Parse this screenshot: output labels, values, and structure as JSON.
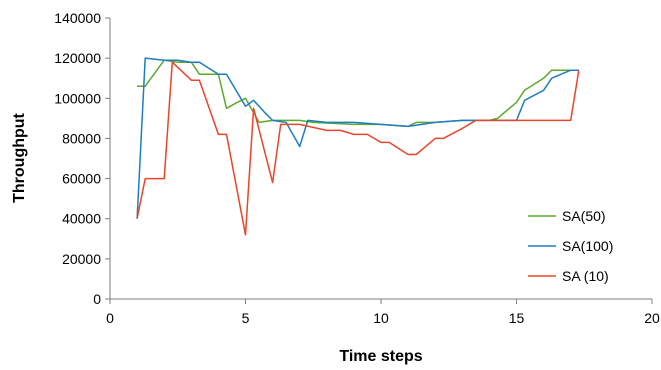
{
  "chart_data": {
    "type": "line",
    "xlabel": "Time steps",
    "ylabel": "Throughput",
    "xlim": [
      0,
      20
    ],
    "ylim": [
      0,
      140000
    ],
    "x_ticks": [
      0,
      5,
      10,
      15,
      20
    ],
    "y_ticks": [
      0,
      20000,
      40000,
      60000,
      80000,
      100000,
      120000,
      140000
    ],
    "grid": false,
    "legend_position": "bottom-right",
    "series": [
      {
        "name": "SA(50)",
        "color": "#5BAA2E",
        "points": [
          [
            1.0,
            106000
          ],
          [
            1.3,
            106000
          ],
          [
            2.0,
            119000
          ],
          [
            2.5,
            118000
          ],
          [
            3.0,
            118000
          ],
          [
            3.3,
            112000
          ],
          [
            4.0,
            112000
          ],
          [
            4.3,
            95000
          ],
          [
            4.7,
            98000
          ],
          [
            5.0,
            100000
          ],
          [
            5.5,
            88000
          ],
          [
            6.0,
            89000
          ],
          [
            7.0,
            89000
          ],
          [
            7.5,
            88000
          ],
          [
            9.0,
            87000
          ],
          [
            10.0,
            87000
          ],
          [
            11.0,
            86000
          ],
          [
            11.3,
            88000
          ],
          [
            12.0,
            88000
          ],
          [
            13.0,
            89000
          ],
          [
            14.0,
            89000
          ],
          [
            14.3,
            90000
          ],
          [
            15.0,
            98000
          ],
          [
            15.3,
            104000
          ],
          [
            16.0,
            110000
          ],
          [
            16.3,
            114000
          ],
          [
            17.0,
            114000
          ],
          [
            17.3,
            114000
          ]
        ]
      },
      {
        "name": "SA(100)",
        "color": "#1F7CC0",
        "points": [
          [
            1.0,
            40000
          ],
          [
            1.3,
            120000
          ],
          [
            2.0,
            119000
          ],
          [
            2.5,
            119000
          ],
          [
            3.0,
            118000
          ],
          [
            3.3,
            118000
          ],
          [
            4.0,
            112000
          ],
          [
            4.3,
            112000
          ],
          [
            5.0,
            96000
          ],
          [
            5.3,
            99000
          ],
          [
            5.7,
            93000
          ],
          [
            6.0,
            89000
          ],
          [
            6.5,
            88000
          ],
          [
            7.0,
            76000
          ],
          [
            7.3,
            89000
          ],
          [
            8.0,
            88000
          ],
          [
            9.0,
            88000
          ],
          [
            10.0,
            87000
          ],
          [
            11.0,
            86000
          ],
          [
            12.0,
            88000
          ],
          [
            13.0,
            89000
          ],
          [
            14.0,
            89000
          ],
          [
            15.0,
            89000
          ],
          [
            15.3,
            99000
          ],
          [
            16.0,
            104000
          ],
          [
            16.3,
            110000
          ],
          [
            17.0,
            114000
          ],
          [
            17.3,
            114000
          ]
        ]
      },
      {
        "name": "SA (10)",
        "color": "#E8452A",
        "points": [
          [
            1.0,
            40000
          ],
          [
            1.3,
            60000
          ],
          [
            2.0,
            60000
          ],
          [
            2.3,
            118000
          ],
          [
            3.0,
            109000
          ],
          [
            3.3,
            109000
          ],
          [
            4.0,
            82000
          ],
          [
            4.3,
            82000
          ],
          [
            5.0,
            32000
          ],
          [
            5.3,
            95000
          ],
          [
            6.0,
            58000
          ],
          [
            6.3,
            87000
          ],
          [
            7.0,
            87000
          ],
          [
            8.0,
            84000
          ],
          [
            8.5,
            84000
          ],
          [
            9.0,
            82000
          ],
          [
            9.5,
            82000
          ],
          [
            10.0,
            78000
          ],
          [
            10.3,
            78000
          ],
          [
            11.0,
            72000
          ],
          [
            11.3,
            72000
          ],
          [
            12.0,
            80000
          ],
          [
            12.3,
            80000
          ],
          [
            13.0,
            85000
          ],
          [
            13.5,
            89000
          ],
          [
            14.0,
            89000
          ],
          [
            15.0,
            89000
          ],
          [
            16.0,
            89000
          ],
          [
            17.0,
            89000
          ],
          [
            17.3,
            114000
          ]
        ]
      }
    ]
  }
}
